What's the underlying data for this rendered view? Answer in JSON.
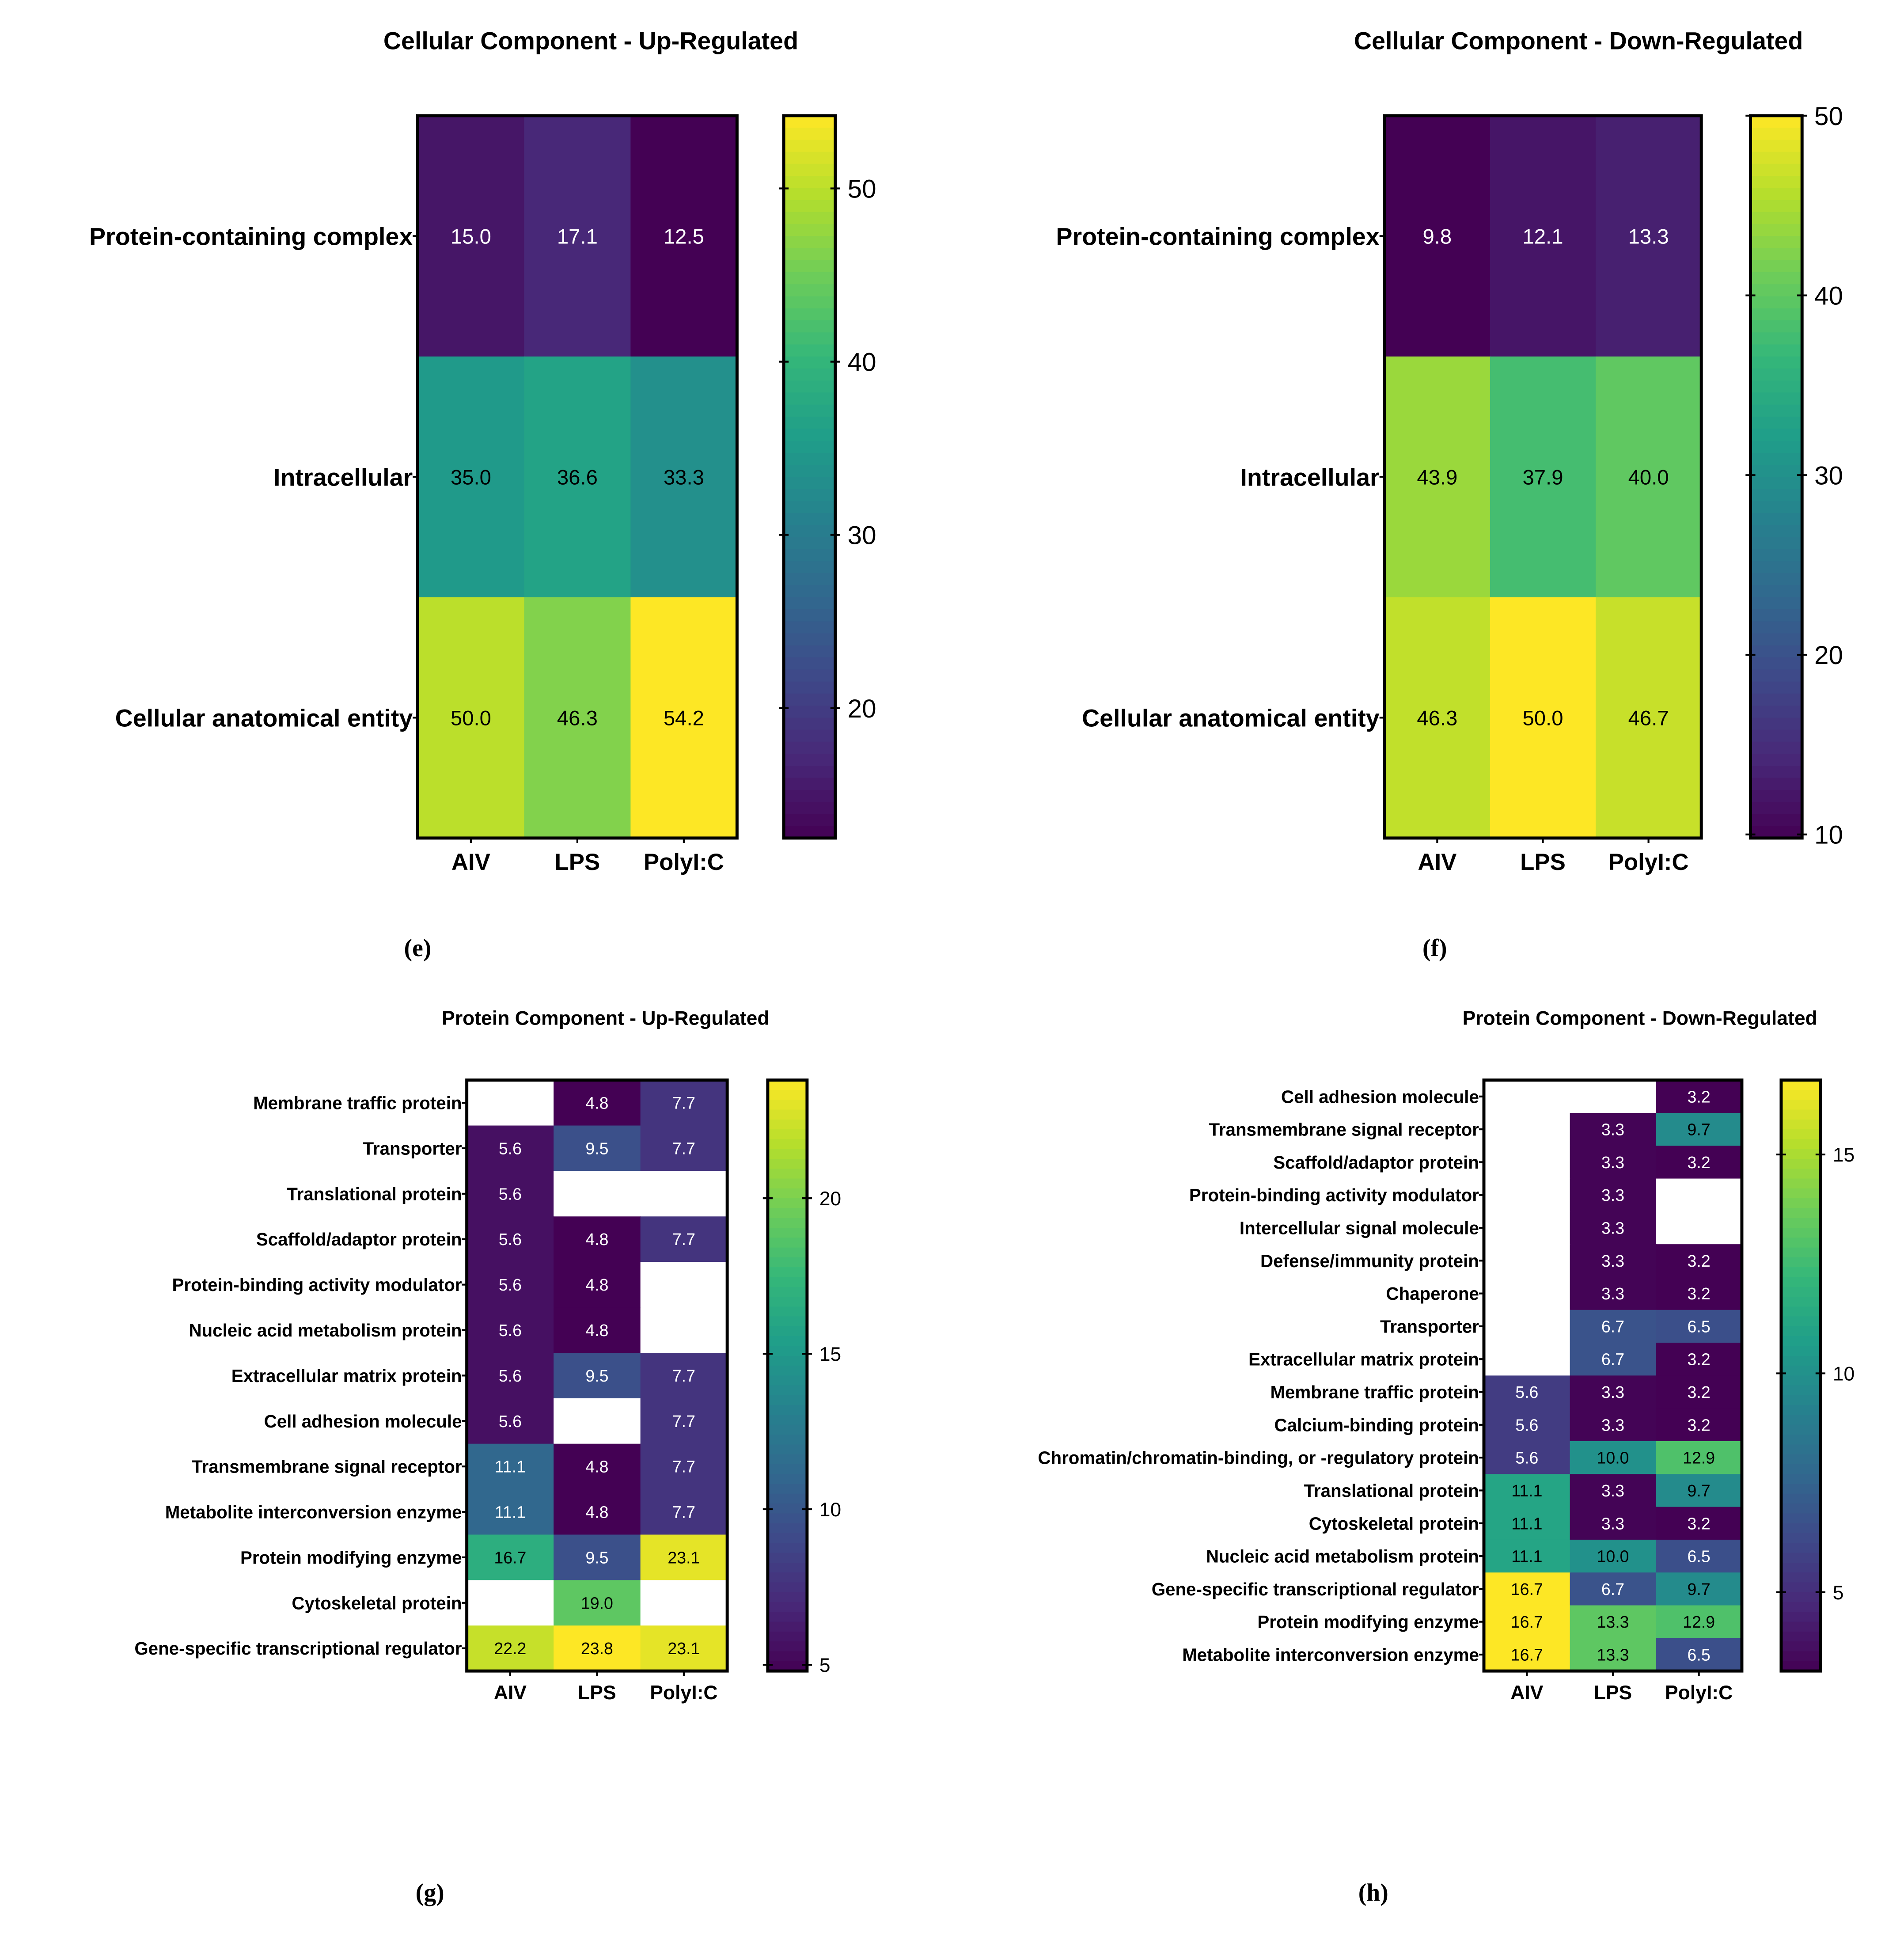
{
  "chart_data": [
    {
      "id": "e",
      "type": "heatmap",
      "panel_label": "(e)",
      "title": "Cellular Component - Up-Regulated",
      "columns": [
        "AIV",
        "LPS",
        "PolyI:C"
      ],
      "rows": [
        "Protein-containing complex",
        "Intracellular",
        "Cellular anatomical entity"
      ],
      "values": [
        [
          15.0,
          17.1,
          12.5
        ],
        [
          35.0,
          36.6,
          33.3
        ],
        [
          50.0,
          46.3,
          54.2
        ]
      ],
      "colorscale": "viridis",
      "color_range": [
        12.5,
        54.2
      ],
      "colorbar_ticks": [
        20,
        30,
        40,
        50
      ]
    },
    {
      "id": "f",
      "type": "heatmap",
      "panel_label": "(f)",
      "title": "Cellular Component - Down-Regulated",
      "columns": [
        "AIV",
        "LPS",
        "PolyI:C"
      ],
      "rows": [
        "Protein-containing complex",
        "Intracellular",
        "Cellular anatomical entity"
      ],
      "values": [
        [
          9.8,
          12.1,
          13.3
        ],
        [
          43.9,
          37.9,
          40.0
        ],
        [
          46.3,
          50.0,
          46.7
        ]
      ],
      "colorscale": "viridis",
      "color_range": [
        9.8,
        50.0
      ],
      "colorbar_ticks": [
        10,
        20,
        30,
        40,
        50
      ]
    },
    {
      "id": "g",
      "type": "heatmap",
      "panel_label": "(g)",
      "title": "Protein Component - Up-Regulated",
      "columns": [
        "AIV",
        "LPS",
        "PolyI:C"
      ],
      "rows": [
        "Membrane traffic protein",
        "Transporter",
        "Translational protein",
        "Scaffold/adaptor protein",
        "Protein-binding activity modulator",
        "Nucleic acid metabolism protein",
        "Extracellular matrix protein",
        "Cell adhesion molecule",
        "Transmembrane signal receptor",
        "Metabolite interconversion enzyme",
        "Protein modifying enzyme",
        "Cytoskeletal protein",
        "Gene-specific transcriptional regulator"
      ],
      "values": [
        [
          null,
          4.8,
          7.7
        ],
        [
          5.6,
          9.5,
          7.7
        ],
        [
          5.6,
          null,
          null
        ],
        [
          5.6,
          4.8,
          7.7
        ],
        [
          5.6,
          4.8,
          null
        ],
        [
          5.6,
          4.8,
          null
        ],
        [
          5.6,
          9.5,
          7.7
        ],
        [
          5.6,
          null,
          7.7
        ],
        [
          11.1,
          4.8,
          7.7
        ],
        [
          11.1,
          4.8,
          7.7
        ],
        [
          16.7,
          9.5,
          23.1
        ],
        [
          null,
          19.0,
          null
        ],
        [
          22.2,
          23.8,
          23.1
        ]
      ],
      "colorscale": "viridis",
      "color_range": [
        4.8,
        23.8
      ],
      "colorbar_ticks": [
        5,
        10,
        15,
        20
      ]
    },
    {
      "id": "h",
      "type": "heatmap",
      "panel_label": "(h)",
      "title": "Protein Component - Down-Regulated",
      "columns": [
        "AIV",
        "LPS",
        "PolyI:C"
      ],
      "rows": [
        "Cell adhesion molecule",
        "Transmembrane signal receptor",
        "Scaffold/adaptor protein",
        "Protein-binding activity modulator",
        "Intercellular signal molecule",
        "Defense/immunity protein",
        "Chaperone",
        "Transporter",
        "Extracellular matrix protein",
        "Membrane traffic protein",
        "Calcium-binding protein",
        "Chromatin/chromatin-binding, or -regulatory protein",
        "Translational protein",
        "Cytoskeletal protein",
        "Nucleic acid metabolism protein",
        "Gene-specific transcriptional regulator",
        "Protein modifying enzyme",
        "Metabolite interconversion enzyme"
      ],
      "values": [
        [
          null,
          null,
          3.2
        ],
        [
          null,
          3.3,
          9.7
        ],
        [
          null,
          3.3,
          3.2
        ],
        [
          null,
          3.3,
          null
        ],
        [
          null,
          3.3,
          null
        ],
        [
          null,
          3.3,
          3.2
        ],
        [
          null,
          3.3,
          3.2
        ],
        [
          null,
          6.7,
          6.5
        ],
        [
          null,
          6.7,
          3.2
        ],
        [
          5.6,
          3.3,
          3.2
        ],
        [
          5.6,
          3.3,
          3.2
        ],
        [
          5.6,
          10.0,
          12.9
        ],
        [
          11.1,
          3.3,
          9.7
        ],
        [
          11.1,
          3.3,
          3.2
        ],
        [
          11.1,
          10.0,
          6.5
        ],
        [
          16.7,
          6.7,
          9.7
        ],
        [
          16.7,
          13.3,
          12.9
        ],
        [
          16.7,
          13.3,
          6.5
        ]
      ],
      "colorscale": "viridis",
      "color_range": [
        3.2,
        16.7
      ],
      "colorbar_ticks": [
        5,
        10,
        15
      ]
    }
  ]
}
